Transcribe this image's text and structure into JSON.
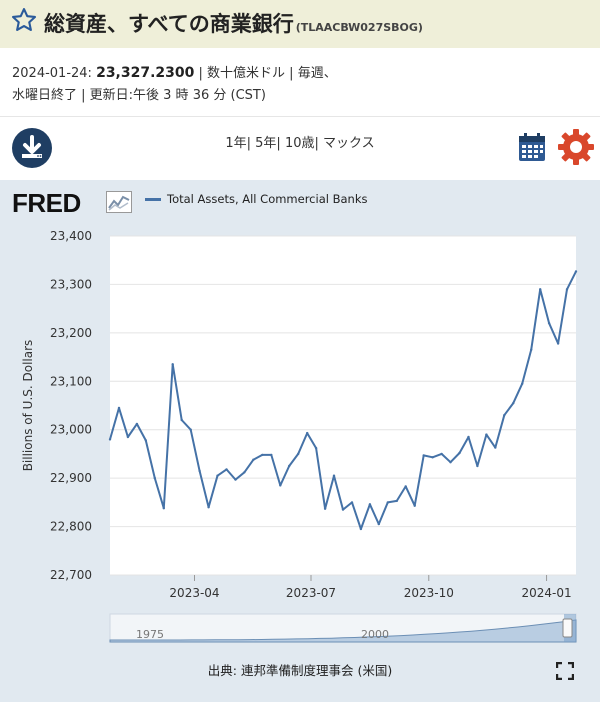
{
  "header": {
    "title": "総資産、すべての商業銀行",
    "series_code": "(TLAACBW027SBOG)"
  },
  "meta": {
    "date": "2024-01-24:",
    "value": "23,327.2300",
    "units_frequency": "| 数十億米ドル | 毎週、",
    "line2": "水曜日終了 | 更新日:午後 3 時 36 分 (CST)"
  },
  "toolbar": {
    "ranges": [
      "1年",
      "5年",
      "10歳",
      "マックス"
    ],
    "separator": "|"
  },
  "brand": {
    "logo_text": "FRED"
  },
  "legend": {
    "label": "Total Assets, All Commercial Banks"
  },
  "navigator": {
    "labels": [
      "1975",
      "2000"
    ]
  },
  "source": {
    "text": "出典: 連邦準備制度理事会 (米国)"
  },
  "colors": {
    "line": "#4572a7",
    "chart_bg": "#e1e9f0",
    "titlebar": "#efefd9",
    "brand_dark": "#1f3e63",
    "gear": "#d9472b"
  },
  "chart_data": {
    "type": "line",
    "title": "Total Assets, All Commercial Banks",
    "ylabel": "Billions of U.S. Dollars",
    "xlabel": "",
    "ylim": [
      22700,
      23400
    ],
    "yticks": [
      22700,
      22800,
      22900,
      23000,
      23100,
      23200,
      23300,
      23400
    ],
    "ytick_labels": [
      "22,700",
      "22,800",
      "22,900",
      "23,000",
      "23,100",
      "23,200",
      "23,300",
      "23,400"
    ],
    "xlim": [
      "2023-01-25",
      "2024-01-24"
    ],
    "xticks": [
      "2023-04-01",
      "2023-07-01",
      "2023-10-01",
      "2024-01-01"
    ],
    "xtick_labels": [
      "2023-04",
      "2023-07",
      "2023-10",
      "2024-01"
    ],
    "grid": true,
    "series": [
      {
        "name": "Total Assets, All Commercial Banks",
        "x": [
          "2023-01-25",
          "2023-02-01",
          "2023-02-08",
          "2023-02-15",
          "2023-02-22",
          "2023-03-01",
          "2023-03-08",
          "2023-03-15",
          "2023-03-22",
          "2023-03-29",
          "2023-04-05",
          "2023-04-12",
          "2023-04-19",
          "2023-04-26",
          "2023-05-03",
          "2023-05-10",
          "2023-05-17",
          "2023-05-24",
          "2023-05-31",
          "2023-06-07",
          "2023-06-14",
          "2023-06-21",
          "2023-06-28",
          "2023-07-05",
          "2023-07-12",
          "2023-07-19",
          "2023-07-26",
          "2023-08-02",
          "2023-08-09",
          "2023-08-16",
          "2023-08-23",
          "2023-08-30",
          "2023-09-06",
          "2023-09-13",
          "2023-09-20",
          "2023-09-27",
          "2023-10-04",
          "2023-10-11",
          "2023-10-18",
          "2023-10-25",
          "2023-11-01",
          "2023-11-08",
          "2023-11-15",
          "2023-11-22",
          "2023-11-29",
          "2023-12-06",
          "2023-12-13",
          "2023-12-20",
          "2023-12-27",
          "2024-01-03",
          "2024-01-10",
          "2024-01-17",
          "2024-01-24"
        ],
        "values": [
          22980,
          23045,
          22985,
          23012,
          22978,
          22900,
          22838,
          23135,
          23020,
          23000,
          22915,
          22840,
          22905,
          22918,
          22897,
          22912,
          22938,
          22948,
          22948,
          22885,
          22925,
          22950,
          22993,
          22962,
          22837,
          22905,
          22835,
          22850,
          22795,
          22846,
          22805,
          22850,
          22853,
          22883,
          22843,
          22947,
          22943,
          22950,
          22933,
          22952,
          22985,
          22925,
          22990,
          22963,
          23030,
          23055,
          23095,
          23165,
          23290,
          23220,
          23178,
          23290,
          23327
        ]
      }
    ]
  }
}
